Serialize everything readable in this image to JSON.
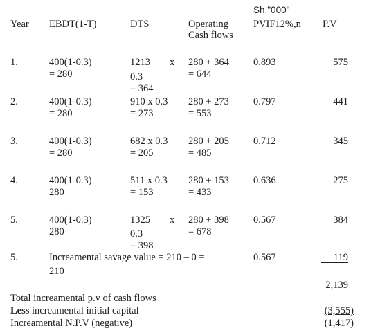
{
  "header": {
    "currency_note": "Sh.\"000\"",
    "year": "Year",
    "ebdt": "EBDT(1-T)",
    "dts": "DTS",
    "operating_line1": "Operating",
    "operating_line2": "Cash flows",
    "pvif": "PVIF12%,n",
    "pv": "P.V"
  },
  "rows": [
    {
      "year": "1.",
      "ebdt1": "400(1-0.3)",
      "ebdt2": "= 280",
      "dts1": "1213",
      "dts_x": "x",
      "dts2": "0.3",
      "dts3": "= 364",
      "op1": "280 + 364",
      "op2": "= 644",
      "pvif": "0.893",
      "pv": "575"
    },
    {
      "year": "2.",
      "ebdt1": "400(1-0.3)",
      "ebdt2": "= 280",
      "dts1": "910 x 0.3",
      "dts2": "= 273",
      "op1": "280 + 273",
      "op2": "= 553",
      "pvif": "0.797",
      "pv": "441"
    },
    {
      "year": "3.",
      "ebdt1": "400(1-0.3)",
      "ebdt2": "= 280",
      "dts1": "682 x 0.3",
      "dts2": "= 205",
      "op1": "280 + 205",
      "op2": "= 485",
      "pvif": "0.712",
      "pv": "345"
    },
    {
      "year": "4.",
      "ebdt1": "400(1-0.3)",
      "ebdt2": "280",
      "dts1": "511 x 0.3",
      "dts2": "= 153",
      "op1": "280 + 153",
      "op2": "= 433",
      "pvif": "0.636",
      "pv": "275"
    },
    {
      "year": "5.",
      "ebdt1": "400(1-0.3)",
      "ebdt2": "280",
      "dts1": "1325",
      "dts_x": "x",
      "dts2": "0.3",
      "dts3": "= 398",
      "op1": "280 + 398",
      "op2": "= 678",
      "pvif": "0.567",
      "pv": "384"
    }
  ],
  "salvage": {
    "year": "5.",
    "text": "Increamental savage value = 210  – 0 =",
    "text2": "210",
    "pvif": "0.567",
    "pv": "119"
  },
  "totals": {
    "sum": "2,139",
    "total_label": "Total increamental p.v of cash flows",
    "less_bold": "Less",
    "less_rest": " increamental initial capital",
    "less_value": "(3,555)",
    "npv_label": "Increamental N.P.V (negative)",
    "npv_value": "(1,417)"
  }
}
